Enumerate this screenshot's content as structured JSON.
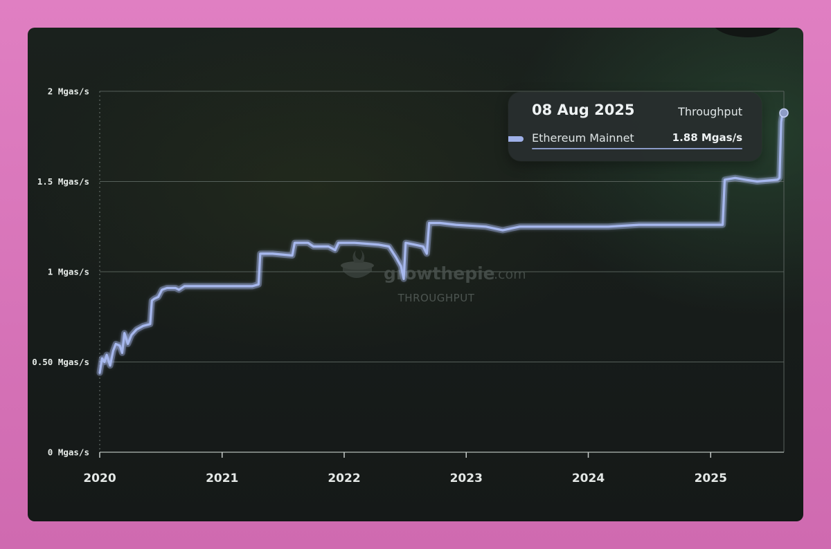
{
  "chart_data": {
    "type": "line",
    "title": "",
    "xlabel": "",
    "ylabel": "",
    "x_range": [
      "2020-01-01",
      "2025-08-08"
    ],
    "ylim": [
      0,
      2
    ],
    "y_ticks": [
      {
        "value": 0,
        "label": "0 Mgas/s"
      },
      {
        "value": 0.5,
        "label": "0.50 Mgas/s"
      },
      {
        "value": 1,
        "label": "1 Mgas/s"
      },
      {
        "value": 1.5,
        "label": "1.5 Mgas/s"
      },
      {
        "value": 2,
        "label": "2 Mgas/s"
      }
    ],
    "x_ticks": [
      "2020",
      "2021",
      "2022",
      "2023",
      "2024",
      "2025"
    ],
    "grid": true,
    "series": [
      {
        "name": "Ethereum Mainnet",
        "color": "#a7b8ee",
        "points": [
          [
            "2020-01-01",
            0.44
          ],
          [
            "2020-01-08",
            0.52
          ],
          [
            "2020-01-15",
            0.5
          ],
          [
            "2020-01-22",
            0.54
          ],
          [
            "2020-02-01",
            0.48
          ],
          [
            "2020-02-10",
            0.56
          ],
          [
            "2020-02-18",
            0.6
          ],
          [
            "2020-03-01",
            0.59
          ],
          [
            "2020-03-08",
            0.55
          ],
          [
            "2020-03-15",
            0.66
          ],
          [
            "2020-03-25",
            0.6
          ],
          [
            "2020-04-05",
            0.65
          ],
          [
            "2020-04-20",
            0.68
          ],
          [
            "2020-05-10",
            0.7
          ],
          [
            "2020-05-31",
            0.71
          ],
          [
            "2020-06-05",
            0.84
          ],
          [
            "2020-06-12",
            0.85
          ],
          [
            "2020-06-24",
            0.86
          ],
          [
            "2020-07-05",
            0.9
          ],
          [
            "2020-07-20",
            0.91
          ],
          [
            "2020-08-15",
            0.91
          ],
          [
            "2020-08-25",
            0.9
          ],
          [
            "2020-09-10",
            0.92
          ],
          [
            "2020-12-15",
            0.92
          ],
          [
            "2021-04-01",
            0.92
          ],
          [
            "2021-04-20",
            0.93
          ],
          [
            "2021-04-25",
            1.1
          ],
          [
            "2021-06-01",
            1.1
          ],
          [
            "2021-07-30",
            1.09
          ],
          [
            "2021-08-06",
            1.16
          ],
          [
            "2021-09-15",
            1.16
          ],
          [
            "2021-10-01",
            1.14
          ],
          [
            "2021-11-15",
            1.14
          ],
          [
            "2021-12-05",
            1.12
          ],
          [
            "2021-12-15",
            1.16
          ],
          [
            "2022-02-01",
            1.16
          ],
          [
            "2022-04-15",
            1.15
          ],
          [
            "2022-05-15",
            1.14
          ],
          [
            "2022-06-05",
            1.08
          ],
          [
            "2022-06-20",
            1.03
          ],
          [
            "2022-06-28",
            0.96
          ],
          [
            "2022-07-04",
            1.16
          ],
          [
            "2022-08-01",
            1.15
          ],
          [
            "2022-08-25",
            1.14
          ],
          [
            "2022-09-05",
            1.1
          ],
          [
            "2022-09-12",
            1.27
          ],
          [
            "2022-10-15",
            1.27
          ],
          [
            "2022-12-01",
            1.26
          ],
          [
            "2023-03-01",
            1.25
          ],
          [
            "2023-04-20",
            1.23
          ],
          [
            "2023-05-15",
            1.24
          ],
          [
            "2023-06-10",
            1.25
          ],
          [
            "2023-09-01",
            1.25
          ],
          [
            "2023-12-01",
            1.25
          ],
          [
            "2024-03-01",
            1.25
          ],
          [
            "2024-06-01",
            1.26
          ],
          [
            "2024-09-01",
            1.26
          ],
          [
            "2024-12-01",
            1.26
          ],
          [
            "2025-02-06",
            1.26
          ],
          [
            "2025-02-12",
            1.51
          ],
          [
            "2025-03-15",
            1.52
          ],
          [
            "2025-04-15",
            1.51
          ],
          [
            "2025-05-20",
            1.5
          ],
          [
            "2025-07-20",
            1.51
          ],
          [
            "2025-07-26",
            1.52
          ],
          [
            "2025-07-31",
            1.83
          ],
          [
            "2025-08-04",
            1.88
          ],
          [
            "2025-08-08",
            1.88
          ]
        ]
      }
    ]
  },
  "tooltip": {
    "date": "08 Aug 2025",
    "metric": "Throughput",
    "series_name": "Ethereum Mainnet",
    "value": "1.88 Mgas/s"
  },
  "watermark": {
    "name": "growthepie",
    "suffix": ".com",
    "subtitle": "THROUGHPUT"
  }
}
